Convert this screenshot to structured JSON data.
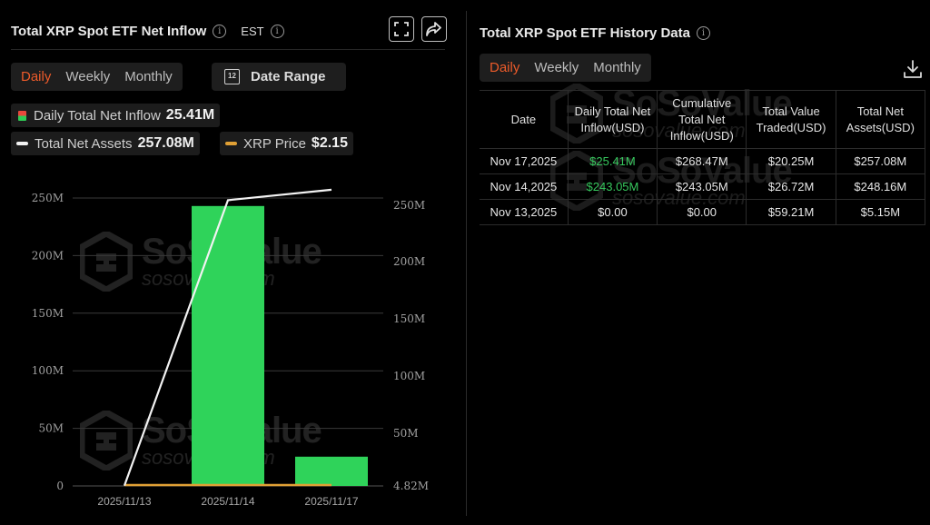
{
  "left_panel": {
    "title": "Total XRP Spot ETF Net Inflow",
    "timezone": "EST",
    "tabs": [
      "Daily",
      "Weekly",
      "Monthly"
    ],
    "active_tab": "Daily",
    "date_range_label": "Date Range",
    "calendar_day": "12",
    "legend": {
      "inflow_label": "Daily Total Net Inflow",
      "inflow_value": "25.41M",
      "assets_label": "Total Net Assets",
      "assets_value": "257.08M",
      "price_label": "XRP Price",
      "price_value": "$2.15"
    }
  },
  "watermark": {
    "brand": "SoSoValue",
    "domain": "sosovalue.com"
  },
  "chart_data": {
    "type": "bar",
    "categories": [
      "2025/11/13",
      "2025/11/14",
      "2025/11/17"
    ],
    "series": [
      {
        "name": "Daily Total Net Inflow",
        "type": "bar",
        "axis": "left",
        "values": [
          0,
          243.05,
          25.41
        ],
        "color": "#2fd35a"
      },
      {
        "name": "Total Net Assets",
        "type": "line",
        "axis": "right",
        "values": [
          5.15,
          248.16,
          257.08
        ],
        "color": "#f2f2f2"
      },
      {
        "name": "XRP Price",
        "type": "line",
        "values": [
          2.15,
          2.15,
          2.15
        ],
        "color": "#e0a035"
      }
    ],
    "left_axis": {
      "ticks": [
        "0",
        "50M",
        "100M",
        "150M",
        "200M",
        "250M"
      ],
      "range": [
        0,
        250
      ]
    },
    "right_axis": {
      "ticks": [
        "4.82M",
        "50M",
        "100M",
        "150M",
        "200M",
        "250M"
      ],
      "range": [
        4.82,
        250
      ]
    },
    "grid": true
  },
  "right_panel": {
    "title": "Total XRP Spot ETF History Data",
    "tabs": [
      "Daily",
      "Weekly",
      "Monthly"
    ],
    "active_tab": "Daily",
    "table": {
      "headers": [
        "Date",
        "Daily Total Net Inflow(USD)",
        "Cumulative Total Net Inflow(USD)",
        "Total Value Traded(USD)",
        "Total Net Assets(USD)"
      ],
      "rows": [
        [
          "Nov 17,2025",
          "$25.41M",
          "$268.47M",
          "$20.25M",
          "$257.08M"
        ],
        [
          "Nov 14,2025",
          "$243.05M",
          "$243.05M",
          "$26.72M",
          "$248.16M"
        ],
        [
          "Nov 13,2025",
          "$0.00",
          "$0.00",
          "$59.21M",
          "$5.15M"
        ]
      ]
    }
  }
}
